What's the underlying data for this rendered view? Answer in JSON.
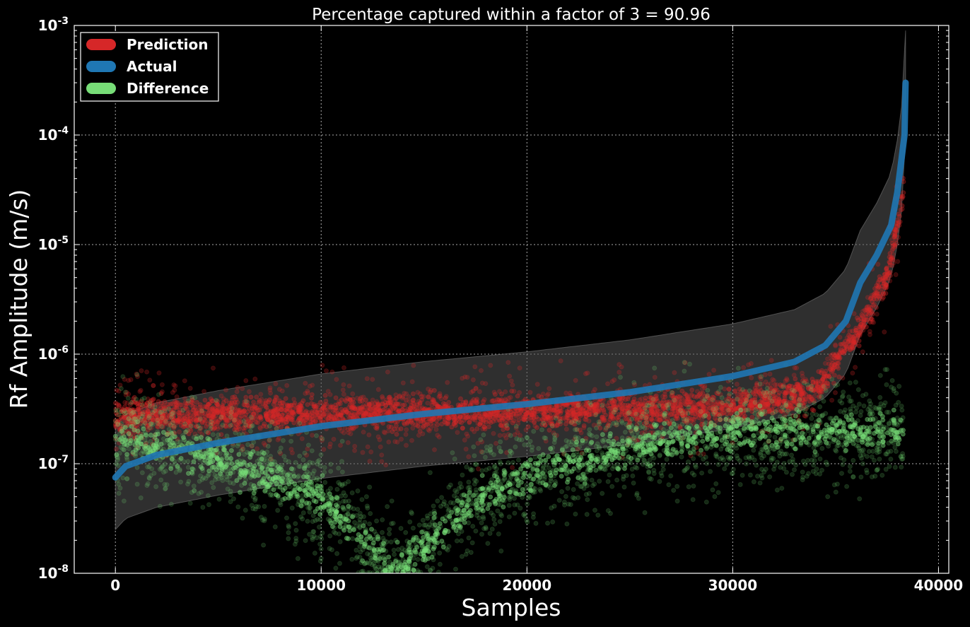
{
  "chart_data": {
    "type": "scatter",
    "title": "Percentage captured within a factor of 3 = 90.96",
    "xlabel": "Samples",
    "ylabel": "Rf Amplitude (m/s)",
    "xlim": [
      -2000,
      40500
    ],
    "ylim": [
      1e-08,
      0.001
    ],
    "yscale": "log",
    "grid": true,
    "legend_position": "top-left",
    "background": "#000000",
    "x_ticks": [
      {
        "value": 0,
        "label": "0"
      },
      {
        "value": 10000,
        "label": "10000"
      },
      {
        "value": 20000,
        "label": "20000"
      },
      {
        "value": 30000,
        "label": "30000"
      },
      {
        "value": 40000,
        "label": "40000"
      }
    ],
    "y_ticks": [
      {
        "value": 1e-08,
        "base": "10",
        "exp": "-8"
      },
      {
        "value": 1e-07,
        "base": "10",
        "exp": "-7"
      },
      {
        "value": 1e-06,
        "base": "10",
        "exp": "-6"
      },
      {
        "value": 1e-05,
        "base": "10",
        "exp": "-5"
      },
      {
        "value": 0.0001,
        "base": "10",
        "exp": "-4"
      },
      {
        "value": 0.001,
        "base": "10",
        "exp": "-3"
      }
    ],
    "series": [
      {
        "name": "Prediction",
        "color": "#d62728",
        "kind": "scatter",
        "approx_center": [
          {
            "x": 0,
            "y": 2.7e-07
          },
          {
            "x": 10000,
            "y": 2.9e-07
          },
          {
            "x": 20000,
            "y": 3e-07
          },
          {
            "x": 30000,
            "y": 3.3e-07
          },
          {
            "x": 34000,
            "y": 4.5e-07
          },
          {
            "x": 36000,
            "y": 1.5e-06
          },
          {
            "x": 37500,
            "y": 5e-06
          },
          {
            "x": 38300,
            "y": 3e-05
          }
        ]
      },
      {
        "name": "Actual",
        "color": "#1f77b4",
        "kind": "line",
        "points": [
          {
            "x": 0,
            "y": 7.5e-08
          },
          {
            "x": 500,
            "y": 9.5e-08
          },
          {
            "x": 2000,
            "y": 1.2e-07
          },
          {
            "x": 5000,
            "y": 1.55e-07
          },
          {
            "x": 10000,
            "y": 2.2e-07
          },
          {
            "x": 15000,
            "y": 2.85e-07
          },
          {
            "x": 20000,
            "y": 3.5e-07
          },
          {
            "x": 25000,
            "y": 4.5e-07
          },
          {
            "x": 30000,
            "y": 6.3e-07
          },
          {
            "x": 33000,
            "y": 8.5e-07
          },
          {
            "x": 34500,
            "y": 1.2e-06
          },
          {
            "x": 35500,
            "y": 2e-06
          },
          {
            "x": 36200,
            "y": 4.5e-06
          },
          {
            "x": 37000,
            "y": 8e-06
          },
          {
            "x": 37700,
            "y": 1.5e-05
          },
          {
            "x": 38000,
            "y": 3e-05
          },
          {
            "x": 38200,
            "y": 6e-05
          },
          {
            "x": 38350,
            "y": 0.0001
          },
          {
            "x": 38400,
            "y": 0.0003
          }
        ]
      },
      {
        "name": "Difference",
        "color": "#77dd77",
        "kind": "scatter",
        "approx_center": [
          {
            "x": 0,
            "y": 1.8e-07
          },
          {
            "x": 5000,
            "y": 1.1e-07
          },
          {
            "x": 10000,
            "y": 5e-08
          },
          {
            "x": 13500,
            "y": 1e-08
          },
          {
            "x": 17000,
            "y": 4e-08
          },
          {
            "x": 20000,
            "y": 8e-08
          },
          {
            "x": 25000,
            "y": 1.4e-07
          },
          {
            "x": 30000,
            "y": 2e-07
          }
        ]
      }
    ],
    "band": {
      "description": "factor of 3 envelope around Actual",
      "color": "#555555"
    }
  }
}
